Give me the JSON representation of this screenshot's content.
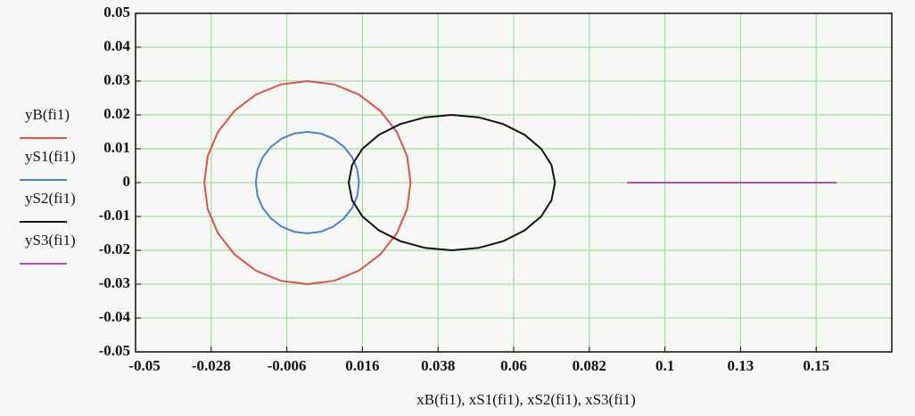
{
  "chart_data": {
    "type": "line",
    "x_label": "xB(fi1), xS1(fi1), xS2(fi1), xS3(fi1)",
    "xlim": [
      -0.05,
      0.17
    ],
    "xticks": [
      -0.05,
      -0.028,
      -0.006,
      0.016,
      0.038,
      0.06,
      0.082,
      {
        "value": 0.104,
        "label": "0.1"
      },
      {
        "value": 0.126,
        "label": "0.13"
      },
      {
        "value": 0.148,
        "label": "0.15"
      }
    ],
    "ylim": [
      -0.05,
      0.05
    ],
    "yticks": [
      -0.05,
      -0.04,
      -0.03,
      -0.02,
      -0.01,
      0,
      0.01,
      0.02,
      0.03,
      0.04,
      0.05
    ],
    "grid": true,
    "legend": "left",
    "series": [
      {
        "name": "yB(fi1)",
        "color": "#d9534a",
        "x": [
          0.03,
          0.029,
          0.026,
          0.0212,
          0.015,
          0.0078,
          0,
          -0.0078,
          -0.015,
          -0.0212,
          -0.026,
          -0.029,
          -0.03,
          -0.029,
          -0.026,
          -0.0212,
          -0.015,
          -0.0078,
          0,
          0.0078,
          0.015,
          0.0212,
          0.026,
          0.029,
          0.03
        ],
        "values": [
          0,
          0.0078,
          0.015,
          0.0212,
          0.026,
          0.029,
          0.03,
          0.029,
          0.026,
          0.0212,
          0.015,
          0.0078,
          0,
          -0.0078,
          -0.015,
          -0.0212,
          -0.026,
          -0.029,
          -0.03,
          -0.029,
          -0.026,
          -0.0212,
          -0.015,
          -0.0078,
          0
        ]
      },
      {
        "name": "yS1(fi1)",
        "color": "#4a7fd4",
        "x": [
          0.015,
          0.0145,
          0.013,
          0.0106,
          0.0075,
          0.0039,
          0,
          -0.0039,
          -0.0075,
          -0.0106,
          -0.013,
          -0.0145,
          -0.015,
          -0.0145,
          -0.013,
          -0.0106,
          -0.0075,
          -0.0039,
          0,
          0.0039,
          0.0075,
          0.0106,
          0.013,
          0.0145,
          0.015
        ],
        "values": [
          0,
          0.0039,
          0.0075,
          0.0106,
          0.013,
          0.0145,
          0.015,
          0.0145,
          0.013,
          0.0106,
          0.0075,
          0.0039,
          0,
          -0.0039,
          -0.0075,
          -0.0106,
          -0.013,
          -0.0145,
          -0.015,
          -0.0145,
          -0.013,
          -0.0106,
          -0.0075,
          -0.0039,
          0
        ]
      },
      {
        "name": "yS2(fi1)",
        "color": "#111111",
        "x": [
          0.072,
          0.071,
          0.068,
          0.0632,
          0.057,
          0.0498,
          0.042,
          0.0342,
          0.027,
          0.0208,
          0.016,
          0.013,
          0.012,
          0.013,
          0.016,
          0.0208,
          0.027,
          0.0342,
          0.042,
          0.0498,
          0.057,
          0.0632,
          0.068,
          0.071,
          0.072
        ],
        "values": [
          0,
          0.0052,
          0.01,
          0.0141,
          0.0173,
          0.0193,
          0.02,
          0.0193,
          0.0173,
          0.0141,
          0.01,
          0.0052,
          0,
          -0.0052,
          -0.01,
          -0.0141,
          -0.0173,
          -0.0193,
          -0.02,
          -0.0193,
          -0.0173,
          -0.0141,
          -0.01,
          -0.0052,
          0
        ]
      },
      {
        "name": "yS3(fi1)",
        "color": "#b04fb0",
        "x": [
          0.093,
          0.154
        ],
        "values": [
          0,
          0
        ]
      }
    ]
  }
}
